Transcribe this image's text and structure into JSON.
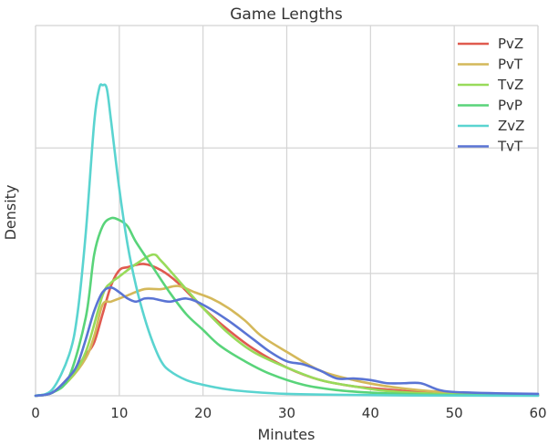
{
  "chart_data": {
    "type": "line",
    "title": "Game Lengths",
    "xlabel": "Minutes",
    "ylabel": "Density",
    "xlim": [
      0,
      60
    ],
    "ylim": [
      0,
      1
    ],
    "x_ticks": [
      0,
      10,
      20,
      30,
      40,
      50,
      60
    ],
    "x_tick_labels": [
      "0",
      "10",
      "20",
      "30",
      "40",
      "50",
      "60"
    ],
    "y_gridlines": [
      0.39,
      0.79
    ],
    "y_tick_labels_visible": false,
    "grid": true,
    "legend_position": "top-right",
    "series": [
      {
        "name": "PvZ",
        "color": "#e05a4f",
        "points": [
          [
            0,
            0
          ],
          [
            2,
            0.01
          ],
          [
            4,
            0.06
          ],
          [
            6,
            0.13
          ],
          [
            7,
            0.17
          ],
          [
            8,
            0.26
          ],
          [
            9,
            0.35
          ],
          [
            10,
            0.4
          ],
          [
            11,
            0.41
          ],
          [
            13,
            0.42
          ],
          [
            15,
            0.4
          ],
          [
            17,
            0.36
          ],
          [
            20,
            0.28
          ],
          [
            23,
            0.21
          ],
          [
            26,
            0.15
          ],
          [
            30,
            0.09
          ],
          [
            34,
            0.05
          ],
          [
            38,
            0.03
          ],
          [
            42,
            0.02
          ],
          [
            48,
            0.008
          ],
          [
            54,
            0.004
          ],
          [
            60,
            0.002
          ]
        ]
      },
      {
        "name": "PvT",
        "color": "#d4b85a",
        "points": [
          [
            0,
            0
          ],
          [
            2,
            0.01
          ],
          [
            4,
            0.05
          ],
          [
            6,
            0.12
          ],
          [
            7,
            0.19
          ],
          [
            8,
            0.29
          ],
          [
            9,
            0.3
          ],
          [
            10,
            0.31
          ],
          [
            11,
            0.32
          ],
          [
            13,
            0.34
          ],
          [
            15,
            0.34
          ],
          [
            17,
            0.35
          ],
          [
            19,
            0.33
          ],
          [
            21,
            0.31
          ],
          [
            23,
            0.28
          ],
          [
            25,
            0.24
          ],
          [
            27,
            0.19
          ],
          [
            30,
            0.14
          ],
          [
            34,
            0.08
          ],
          [
            38,
            0.05
          ],
          [
            42,
            0.03
          ],
          [
            47,
            0.015
          ],
          [
            52,
            0.008
          ],
          [
            58,
            0.004
          ],
          [
            60,
            0.003
          ]
        ]
      },
      {
        "name": "TvZ",
        "color": "#98db5a",
        "points": [
          [
            0,
            0
          ],
          [
            2,
            0.01
          ],
          [
            4,
            0.05
          ],
          [
            6,
            0.14
          ],
          [
            8,
            0.32
          ],
          [
            9,
            0.36
          ],
          [
            10,
            0.38
          ],
          [
            12,
            0.42
          ],
          [
            14,
            0.45
          ],
          [
            15,
            0.43
          ],
          [
            17,
            0.37
          ],
          [
            20,
            0.28
          ],
          [
            23,
            0.2
          ],
          [
            26,
            0.14
          ],
          [
            30,
            0.09
          ],
          [
            34,
            0.05
          ],
          [
            38,
            0.03
          ],
          [
            42,
            0.015
          ],
          [
            48,
            0.006
          ],
          [
            54,
            0.003
          ],
          [
            60,
            0.001
          ]
        ]
      },
      {
        "name": "PvP",
        "color": "#59d47a",
        "points": [
          [
            0,
            0
          ],
          [
            2,
            0.01
          ],
          [
            4,
            0.06
          ],
          [
            6,
            0.25
          ],
          [
            7,
            0.45
          ],
          [
            8,
            0.54
          ],
          [
            9,
            0.566
          ],
          [
            10,
            0.56
          ],
          [
            11,
            0.54
          ],
          [
            12,
            0.49
          ],
          [
            14,
            0.41
          ],
          [
            16,
            0.33
          ],
          [
            18,
            0.26
          ],
          [
            20,
            0.21
          ],
          [
            22,
            0.16
          ],
          [
            25,
            0.11
          ],
          [
            28,
            0.07
          ],
          [
            32,
            0.035
          ],
          [
            36,
            0.018
          ],
          [
            40,
            0.01
          ],
          [
            46,
            0.004
          ],
          [
            52,
            0.002
          ],
          [
            60,
            0.001
          ]
        ]
      },
      {
        "name": "ZvZ",
        "color": "#5ad4d0",
        "points": [
          [
            0,
            0
          ],
          [
            2,
            0.02
          ],
          [
            4,
            0.13
          ],
          [
            5,
            0.26
          ],
          [
            6,
            0.52
          ],
          [
            7,
            0.87
          ],
          [
            7.6,
            0.98
          ],
          [
            8,
            0.99
          ],
          [
            8.5,
            0.98
          ],
          [
            9,
            0.88
          ],
          [
            10,
            0.66
          ],
          [
            11,
            0.48
          ],
          [
            12,
            0.35
          ],
          [
            13,
            0.25
          ],
          [
            14,
            0.17
          ],
          [
            15,
            0.11
          ],
          [
            16,
            0.08
          ],
          [
            18,
            0.05
          ],
          [
            20,
            0.035
          ],
          [
            23,
            0.02
          ],
          [
            26,
            0.012
          ],
          [
            30,
            0.006
          ],
          [
            36,
            0.003
          ],
          [
            45,
            0.001
          ],
          [
            60,
            0
          ]
        ]
      },
      {
        "name": "TvT",
        "color": "#5a74d4",
        "points": [
          [
            0,
            0
          ],
          [
            2,
            0.01
          ],
          [
            4,
            0.06
          ],
          [
            5,
            0.1
          ],
          [
            6,
            0.18
          ],
          [
            7,
            0.27
          ],
          [
            8,
            0.33
          ],
          [
            9,
            0.345
          ],
          [
            10,
            0.33
          ],
          [
            11,
            0.31
          ],
          [
            12,
            0.3
          ],
          [
            13,
            0.31
          ],
          [
            14,
            0.31
          ],
          [
            16,
            0.3
          ],
          [
            18,
            0.31
          ],
          [
            20,
            0.29
          ],
          [
            23,
            0.24
          ],
          [
            26,
            0.18
          ],
          [
            28,
            0.14
          ],
          [
            30,
            0.11
          ],
          [
            32,
            0.1
          ],
          [
            34,
            0.08
          ],
          [
            36,
            0.055
          ],
          [
            38,
            0.055
          ],
          [
            40,
            0.05
          ],
          [
            42,
            0.04
          ],
          [
            44,
            0.04
          ],
          [
            46,
            0.04
          ],
          [
            48,
            0.02
          ],
          [
            50,
            0.012
          ],
          [
            55,
            0.008
          ],
          [
            60,
            0.006
          ]
        ]
      }
    ]
  }
}
